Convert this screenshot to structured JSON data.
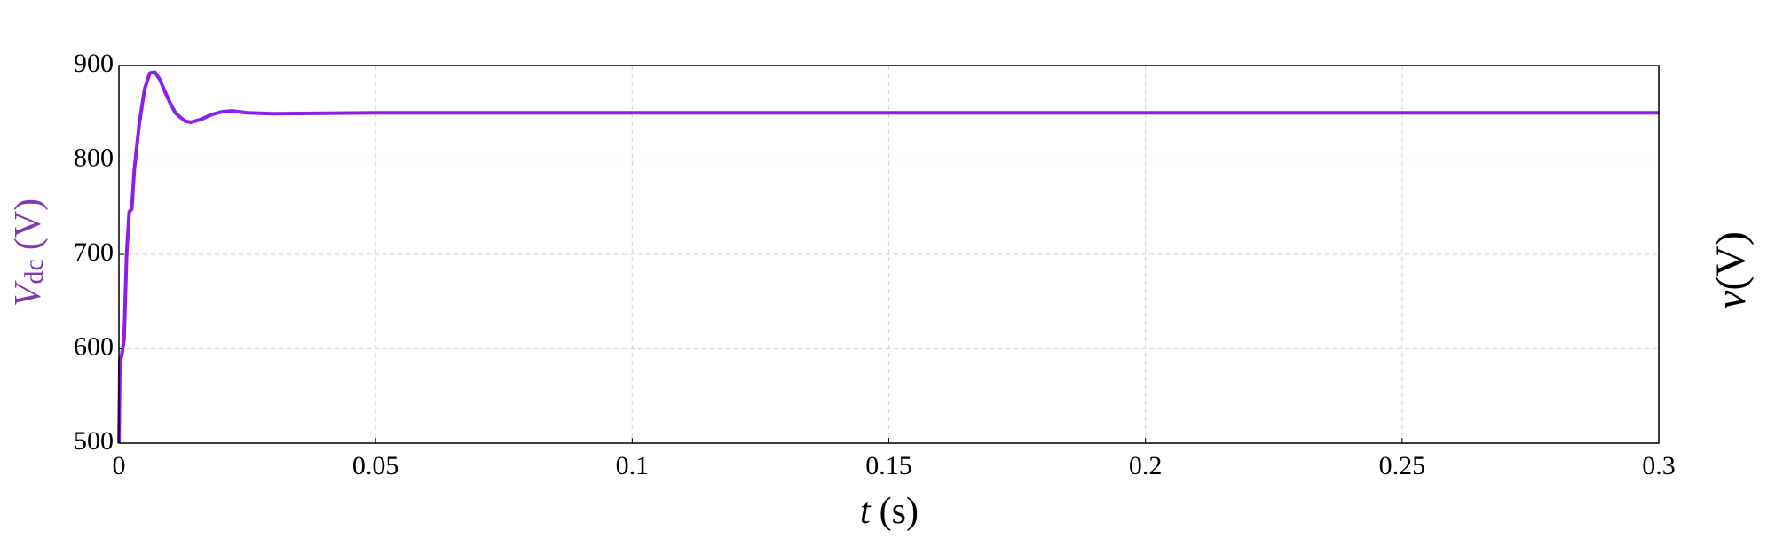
{
  "chart_data": {
    "type": "line",
    "ylabel": {
      "symbol": "V",
      "subscript": "dc",
      "unit": "(V)"
    },
    "xlabel": {
      "symbol": "t",
      "unit": "(s)"
    },
    "right_label": {
      "symbol": "v",
      "unit": "(V)"
    },
    "x": [
      0,
      0.0002,
      0.0005,
      0.001,
      0.0015,
      0.002,
      0.0025,
      0.003,
      0.004,
      0.005,
      0.006,
      0.007,
      0.008,
      0.009,
      0.01,
      0.011,
      0.012,
      0.013,
      0.014,
      0.016,
      0.018,
      0.02,
      0.022,
      0.025,
      0.03,
      0.05,
      0.1,
      0.15,
      0.2,
      0.25,
      0.3
    ],
    "series": [
      {
        "color": "#8a1fe8",
        "values": [
          500,
          590,
          592,
          610,
          700,
          745,
          748,
          790,
          840,
          875,
          892,
          893,
          885,
          872,
          860,
          850,
          845,
          841,
          840,
          843,
          848,
          851,
          852,
          850,
          849,
          850,
          850,
          850,
          850,
          850,
          850
        ]
      }
    ],
    "xlim": [
      0,
      0.3
    ],
    "xticks": [
      0,
      0.05,
      0.1,
      0.15,
      0.2,
      0.25,
      0.3
    ],
    "ylim": [
      500,
      900
    ],
    "yticks": [
      500,
      600,
      700,
      800,
      900
    ],
    "grid": true
  }
}
